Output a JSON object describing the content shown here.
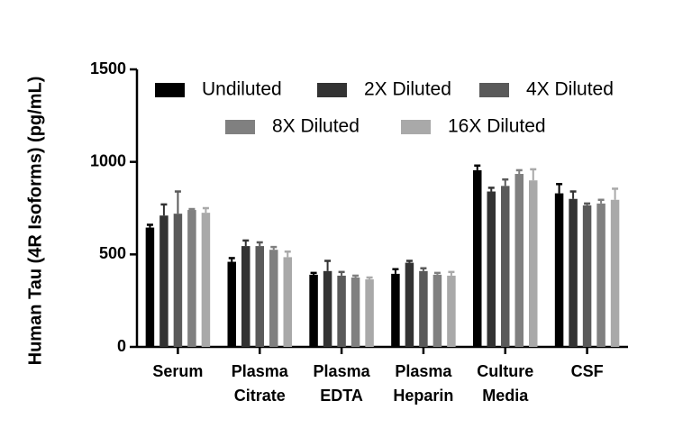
{
  "chart_data": {
    "type": "bar",
    "y_label": "Human Tau (4R Isoforms) (pg/mL)",
    "categories": [
      [
        "Serum"
      ],
      [
        "Plasma",
        "Citrate"
      ],
      [
        "Plasma",
        "EDTA"
      ],
      [
        "Plasma",
        "Heparin"
      ],
      [
        "Culture",
        "Media"
      ],
      [
        "CSF"
      ]
    ],
    "series": [
      {
        "name": "Undiluted",
        "color": "#000000",
        "values": [
          645,
          460,
          390,
          395,
          955,
          830
        ],
        "errors": [
          15,
          20,
          10,
          25,
          25,
          50
        ]
      },
      {
        "name": "2X Diluted",
        "color": "#333333",
        "values": [
          710,
          545,
          410,
          455,
          840,
          800
        ],
        "errors": [
          60,
          30,
          55,
          10,
          20,
          40
        ]
      },
      {
        "name": "4X Diluted",
        "color": "#5a5a5a",
        "values": [
          720,
          545,
          385,
          410,
          870,
          765
        ],
        "errors": [
          120,
          20,
          20,
          15,
          35,
          10
        ]
      },
      {
        "name": "8X Diluted",
        "color": "#808080",
        "values": [
          740,
          525,
          375,
          390,
          935,
          775
        ],
        "errors": [
          5,
          15,
          10,
          10,
          20,
          20
        ]
      },
      {
        "name": "16X Diluted",
        "color": "#a9a9a9",
        "values": [
          725,
          485,
          365,
          385,
          900,
          795
        ],
        "errors": [
          25,
          30,
          10,
          20,
          60,
          60
        ]
      }
    ],
    "ylim": [
      0,
      1500
    ],
    "yticks": [
      0,
      500,
      1000,
      1500
    ]
  }
}
